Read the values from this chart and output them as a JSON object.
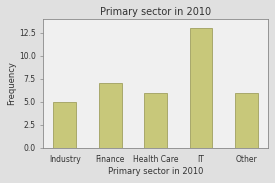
{
  "title": "Primary sector in 2010",
  "xlabel": "Primary sector in 2010",
  "ylabel": "Frequency",
  "categories": [
    "Industry",
    "Finance",
    "Health Care",
    "IT",
    "Other"
  ],
  "values": [
    5,
    7,
    6,
    13,
    6
  ],
  "bar_color": "#c8c87a",
  "bar_edge_color": "#a0a060",
  "ylim": [
    0,
    14
  ],
  "yticks": [
    0.0,
    2.5,
    5.0,
    7.5,
    10.0,
    12.5
  ],
  "figure_bg_color": "#e0e0e0",
  "plot_bg_color": "#f0f0f0",
  "title_fontsize": 7,
  "label_fontsize": 6,
  "tick_fontsize": 5.5
}
